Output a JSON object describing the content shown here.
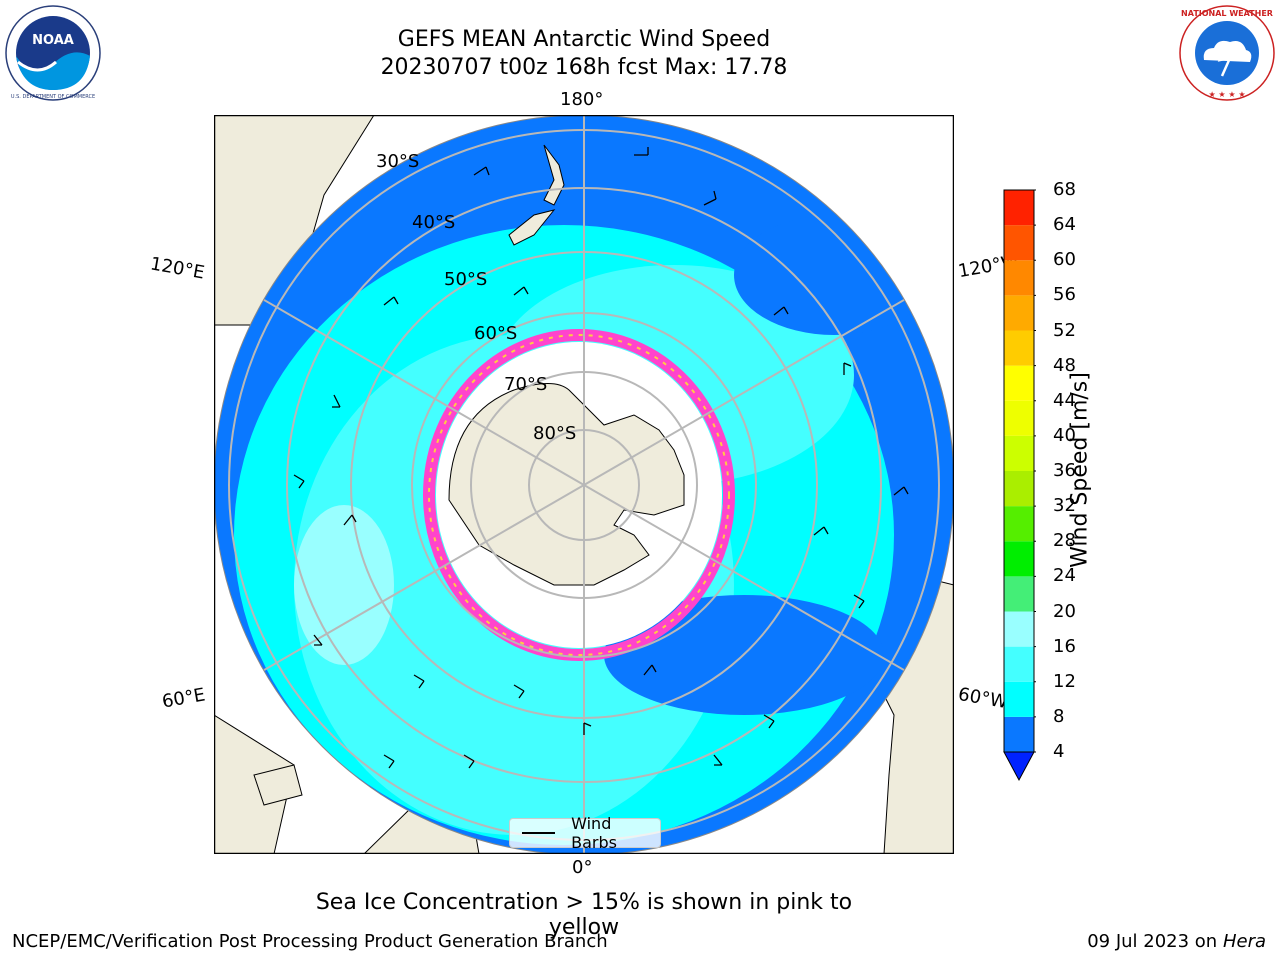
{
  "header": {
    "title_line1": "GEFS MEAN Antarctic Wind Speed",
    "title_line2": "20230707 t00z 168h fcst   Max: 17.78"
  },
  "logos": {
    "left": "NOAA",
    "left_ring": "NATIONAL OCEANIC AND ATMOSPHERIC ADMINISTRATION · U.S. DEPARTMENT OF COMMERCE",
    "right_ring": "NATIONAL WEATHER SERVICE"
  },
  "map": {
    "lon_labels": {
      "top": "180°",
      "bottom": "0°",
      "left_upper": "120°E",
      "right_upper": "120°W",
      "left_lower": "60°E",
      "right_lower": "60°W"
    },
    "lat_labels": [
      "30°S",
      "40°S",
      "50°S",
      "60°S",
      "70°S",
      "80°S"
    ],
    "legend_label": "Wind Barbs"
  },
  "colorbar": {
    "label": "Wind Speed [m/s]",
    "ticks": [
      "4",
      "8",
      "12",
      "16",
      "20",
      "24",
      "28",
      "32",
      "36",
      "40",
      "44",
      "48",
      "52",
      "56",
      "60",
      "64",
      "68"
    ],
    "colors": [
      "#0a78ff",
      "#00ffff",
      "#44ffff",
      "#99ffff",
      "#44ee77",
      "#00ee00",
      "#55ee00",
      "#aaee00",
      "#ccff00",
      "#eeff00",
      "#ffff00",
      "#ffcc00",
      "#ffaa00",
      "#ff8800",
      "#ff5500",
      "#ff2200"
    ],
    "under_color": "#0022ff"
  },
  "footer": {
    "note": "Sea Ice Concentration > 15% is shown in pink to yellow",
    "branch": "NCEP/EMC/Verification Post Processing Product Generation Branch",
    "date": "09 Jul 2023 on",
    "host": "Hera"
  },
  "colors": {
    "land": "#efecdc",
    "ocean_low": "#0a78ff",
    "ocean_mid": "#00ffff",
    "ocean_high": "#44ffff",
    "sea_ice_edge": "#ff44cc",
    "grid": "#b8b8b8"
  }
}
